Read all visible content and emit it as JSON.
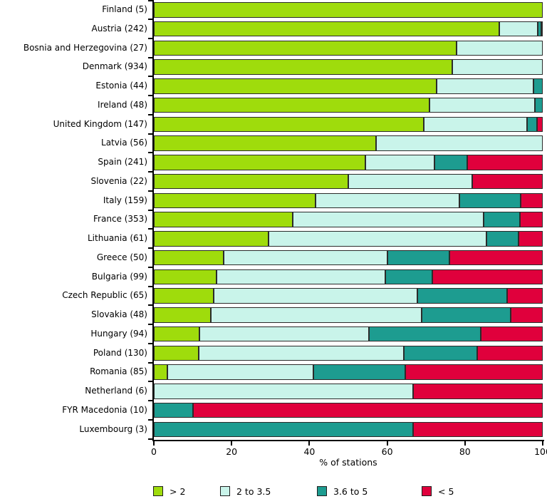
{
  "chart_data": {
    "type": "bar",
    "orientation": "horizontal",
    "stacked": true,
    "unit": "percent",
    "title": "",
    "xlabel": "% of stations",
    "xlim": [
      0,
      100
    ],
    "xticks": [
      0,
      20,
      40,
      60,
      80,
      100
    ],
    "grid": false,
    "legend_position": "bottom",
    "categories": [
      "Finland (5)",
      "Austria (242)",
      "Bosnia and Herzegovina (27)",
      "Denmark (934)",
      "Estonia (44)",
      "Ireland (48)",
      "United Kingdom (147)",
      "Latvia (56)",
      "Spain (241)",
      "Slovenia (22)",
      "Italy (159)",
      "France (353)",
      "Lithuania (61)",
      "Greece (50)",
      "Bulgaria (99)",
      "Czech Republic (65)",
      "Slovakia (48)",
      "Hungary (94)",
      "Poland (130)",
      "Romania (85)",
      "Netherland (6)",
      "FYR Macedonia (10)",
      "Luxembourg (3)"
    ],
    "series": [
      {
        "name": "> 2",
        "color": "#9fdc0c",
        "values": [
          100,
          88.8,
          77.8,
          76.7,
          72.7,
          70.8,
          69.4,
          57.1,
          54.4,
          50.0,
          41.5,
          35.8,
          29.5,
          18.0,
          16.2,
          15.4,
          14.6,
          11.7,
          11.5,
          3.5,
          0,
          0,
          0
        ]
      },
      {
        "name": "2 to 3.5",
        "color": "#c9f4ea",
        "values": [
          0,
          9.9,
          22.2,
          23.3,
          25.0,
          27.1,
          26.5,
          42.9,
          17.8,
          31.8,
          37.1,
          49.0,
          56.0,
          42.0,
          43.4,
          52.3,
          54.2,
          43.6,
          52.8,
          37.6,
          66.7,
          0,
          0
        ]
      },
      {
        "name": "3.6 to 5",
        "color": "#1d9c90",
        "values": [
          0,
          0.9,
          0,
          0,
          2.3,
          2.1,
          2.7,
          0,
          8.3,
          0,
          15.7,
          9.3,
          8.2,
          16.0,
          12.1,
          23.1,
          22.9,
          28.7,
          18.8,
          23.6,
          0,
          10.0,
          66.7
        ]
      },
      {
        "name": "< 5",
        "color": "#e0003c",
        "values": [
          0,
          0.4,
          0,
          0,
          0,
          0,
          1.4,
          0,
          19.5,
          18.2,
          5.7,
          5.9,
          6.3,
          24.0,
          28.3,
          9.2,
          8.3,
          16.0,
          16.9,
          35.3,
          33.3,
          90.0,
          33.3
        ]
      }
    ]
  },
  "style": {
    "segment_border_color": "#2b2b2b",
    "axis_color": "#000000",
    "background": "#ffffff"
  },
  "legend": {
    "items": [
      "> 2",
      "2 to 3.5",
      "3.6 to 5",
      "< 5"
    ]
  }
}
